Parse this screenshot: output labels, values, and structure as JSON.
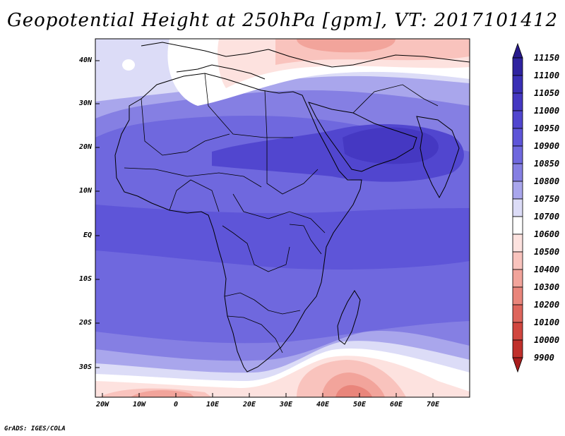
{
  "title": "Geopotential Height at 250hPa [gpm], VT: 2017101412",
  "credit": "GrADS: IGES/COLA",
  "map": {
    "region": "Africa",
    "variable": "Geopotential Height",
    "level": "250hPa",
    "units": "gpm",
    "valid_time": "2017101412",
    "lat_labels": [
      "40N",
      "30N",
      "20N",
      "10N",
      "EQ",
      "10S",
      "20S",
      "30S"
    ],
    "lon_labels": [
      "20W",
      "10W",
      "0",
      "10E",
      "20E",
      "30E",
      "40E",
      "50E",
      "60E",
      "70E"
    ]
  },
  "colorbar": {
    "labels": [
      "11150",
      "11100",
      "11050",
      "11000",
      "10950",
      "10900",
      "10850",
      "10800",
      "10750",
      "10700",
      "10600",
      "10500",
      "10400",
      "10300",
      "10200",
      "10100",
      "10000",
      "9900"
    ],
    "colors": [
      "#281a8c",
      "#2f23a0",
      "#3a2fb5",
      "#4538c2",
      "#5146cf",
      "#5e55d8",
      "#6f68de",
      "#857fe3",
      "#a9a6ec",
      "#dcdcf7",
      "#ffffff",
      "#fde2df",
      "#f9c3bd",
      "#f2a49b",
      "#e9857b",
      "#de655c",
      "#d1463f",
      "#c0302b",
      "#a91d1d"
    ]
  }
}
